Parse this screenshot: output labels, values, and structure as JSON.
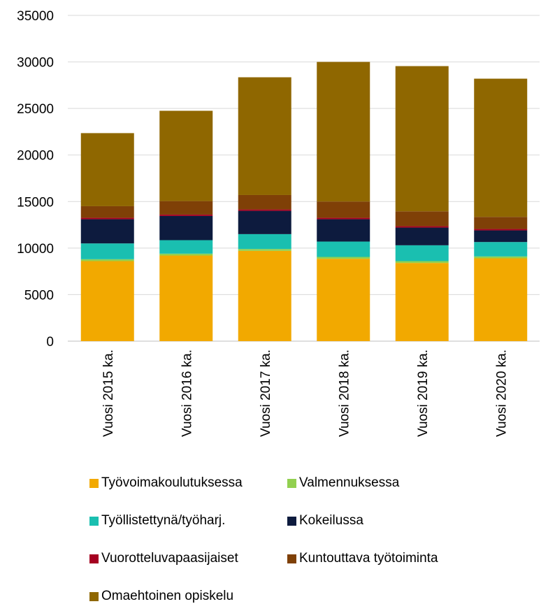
{
  "chart_data": {
    "type": "bar",
    "stacked": true,
    "categories": [
      "Vuosi 2015 ka.",
      "Vuosi 2016 ka.",
      "Vuosi 2017 ka.",
      "Vuosi 2018 ka.",
      "Vuosi 2019 ka.",
      "Vuosi 2020 ka."
    ],
    "ylim": [
      0,
      35000
    ],
    "yticks": [
      "0",
      "5000",
      "10000",
      "15000",
      "20000",
      "25000",
      "30000",
      "35000"
    ],
    "grid": true,
    "legend_position": "bottom",
    "series": [
      {
        "name": "Työvoimakoulutuksessa",
        "color": "#F2A900",
        "values": [
          8600,
          9200,
          9700,
          8850,
          8400,
          8900
        ]
      },
      {
        "name": "Valmennuksessa",
        "color": "#92D050",
        "values": [
          200,
          200,
          200,
          200,
          200,
          200
        ]
      },
      {
        "name": "Työllistettynä/työharj.",
        "color": "#1ABFB0",
        "values": [
          1700,
          1450,
          1600,
          1650,
          1700,
          1550
        ]
      },
      {
        "name": "Kokeilussa",
        "color": "#0D1B3E",
        "values": [
          2600,
          2600,
          2500,
          2400,
          1900,
          1250
        ]
      },
      {
        "name": "Vuorotteluvapaasijaiset",
        "color": "#A50021",
        "values": [
          150,
          150,
          150,
          150,
          150,
          150
        ]
      },
      {
        "name": "Kuntouttava työtoiminta",
        "color": "#7F4007",
        "values": [
          1250,
          1450,
          1550,
          1750,
          1600,
          1300
        ]
      },
      {
        "name": "Omaehtoinen opiskelu",
        "color": "#8F6700",
        "values": [
          7850,
          9700,
          12650,
          15000,
          15600,
          14850
        ]
      }
    ]
  }
}
